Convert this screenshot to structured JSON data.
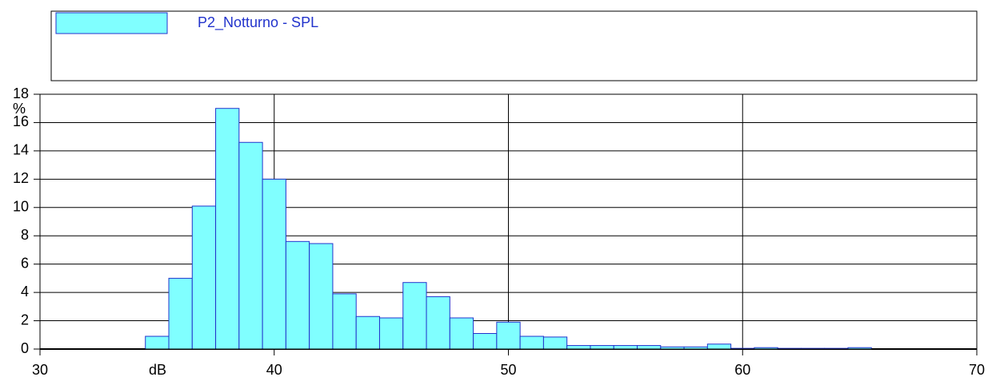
{
  "chart_data": {
    "type": "histogram",
    "x_label": "dB",
    "y_label": "%",
    "series": [
      {
        "name": "P2_Notturno - SPL",
        "color": "#80ffff",
        "edge_color": "#2233cc",
        "bins": [
          34.5,
          35.5,
          36.5,
          37.5,
          38.5,
          39.5,
          40.5,
          41.5,
          42.5,
          43.5,
          44.5,
          45.5,
          46.5,
          47.5,
          48.5,
          49.5,
          50.5,
          51.5,
          52.5,
          53.5,
          54.5,
          55.5,
          56.5,
          57.5,
          58.5,
          59.5,
          60.5,
          61.5,
          62.5,
          63.5,
          64.5,
          65.5
        ],
        "values": [
          0.9,
          5.0,
          10.1,
          17.0,
          14.6,
          12.0,
          7.6,
          7.45,
          3.9,
          2.3,
          2.2,
          4.7,
          3.7,
          2.2,
          1.1,
          1.9,
          0.9,
          0.85,
          0.25,
          0.25,
          0.25,
          0.25,
          0.15,
          0.15,
          0.35,
          0.05,
          0.1,
          0.05,
          0.05,
          0.05,
          0.1
        ]
      }
    ],
    "xlim": [
      30,
      70
    ],
    "xticks": [
      30,
      40,
      50,
      60,
      70
    ],
    "ylim": [
      0,
      18
    ],
    "yticks": [
      0,
      2,
      4,
      6,
      8,
      10,
      12,
      14,
      16,
      18
    ],
    "grid": true
  }
}
